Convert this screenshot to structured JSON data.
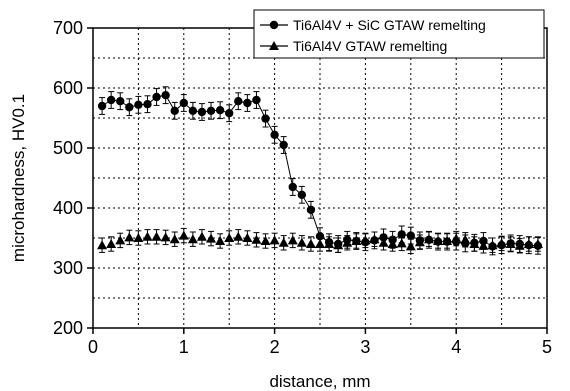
{
  "chart_data": {
    "type": "scatter",
    "title": "",
    "xlabel": "distance, mm",
    "ylabel": "microhardness, HV0.1",
    "xlim": [
      0,
      5
    ],
    "ylim": [
      200,
      700
    ],
    "xticks": [
      0,
      1,
      2,
      3,
      4,
      5
    ],
    "yticks": [
      200,
      300,
      400,
      500,
      600,
      700
    ],
    "grid": true,
    "legend_position": "top-right",
    "series": [
      {
        "name": "Ti6Al4V + SiC GTAW remelting",
        "marker": "circle",
        "line": true,
        "color": "#000000",
        "x": [
          0.1,
          0.2,
          0.3,
          0.4,
          0.5,
          0.6,
          0.7,
          0.8,
          0.9,
          1.0,
          1.1,
          1.2,
          1.3,
          1.4,
          1.5,
          1.6,
          1.7,
          1.8,
          1.9,
          2.0,
          2.1,
          2.2,
          2.3,
          2.4,
          2.5,
          2.6,
          2.7,
          2.8,
          2.9,
          3.0,
          3.1,
          3.2,
          3.3,
          3.4,
          3.5,
          3.6,
          3.7,
          3.8,
          3.9,
          4.0,
          4.1,
          4.2,
          4.3,
          4.4,
          4.5,
          4.6,
          4.7,
          4.8,
          4.9
        ],
        "y": [
          570,
          580,
          578,
          568,
          572,
          573,
          585,
          588,
          562,
          575,
          562,
          560,
          562,
          563,
          558,
          578,
          575,
          580,
          549,
          522,
          505,
          435,
          422,
          397,
          353,
          343,
          340,
          347,
          345,
          343,
          346,
          351,
          347,
          356,
          354,
          346,
          347,
          344,
          344,
          344,
          341,
          342,
          345,
          336,
          338,
          341,
          340,
          338,
          337
        ],
        "error": 14
      },
      {
        "name": "Ti6Al4V GTAW remelting",
        "marker": "triangle",
        "line": false,
        "color": "#000000",
        "x": [
          0.1,
          0.2,
          0.3,
          0.4,
          0.5,
          0.6,
          0.7,
          0.8,
          0.9,
          1.0,
          1.1,
          1.2,
          1.3,
          1.4,
          1.5,
          1.6,
          1.7,
          1.8,
          1.9,
          2.0,
          2.1,
          2.2,
          2.3,
          2.4,
          2.5,
          2.6,
          2.7,
          2.8,
          2.9,
          3.0,
          3.1,
          3.2,
          3.3,
          3.4,
          3.5,
          3.6,
          3.7,
          3.8,
          3.9,
          4.0,
          4.1,
          4.2,
          4.3,
          4.4,
          4.5,
          4.6,
          4.7,
          4.8,
          4.9
        ],
        "y": [
          338,
          340,
          346,
          351,
          350,
          352,
          352,
          351,
          348,
          354,
          348,
          352,
          349,
          345,
          350,
          352,
          350,
          347,
          345,
          346,
          342,
          346,
          342,
          340,
          340,
          340,
          338,
          342,
          345,
          346,
          348,
          342,
          340,
          341,
          336,
          343,
          348,
          345,
          345,
          349,
          347,
          340,
          337,
          338,
          341,
          340,
          337,
          340,
          340
        ],
        "error": 12
      }
    ]
  }
}
